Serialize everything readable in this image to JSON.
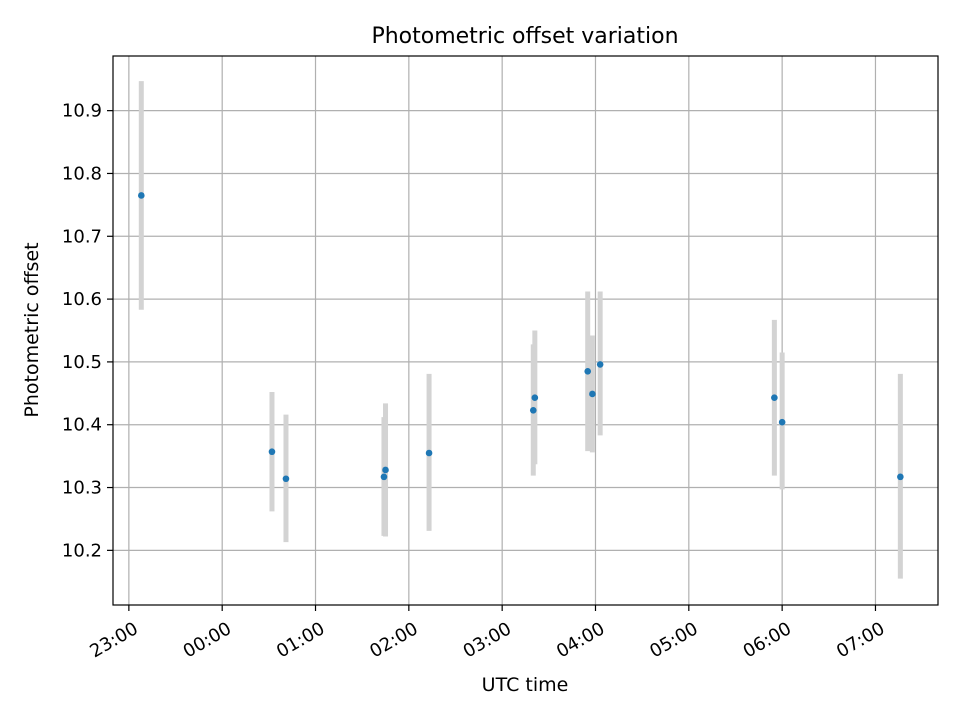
{
  "chart_data": {
    "type": "scatter",
    "title": "Photometric offset variation",
    "xlabel": "UTC time",
    "ylabel": "Photometric offset",
    "x_tick_labels": [
      "23:00",
      "00:00",
      "01:00",
      "02:00",
      "03:00",
      "04:00",
      "05:00",
      "06:00",
      "07:00"
    ],
    "y_tick_labels": [
      "10.2",
      "10.3",
      "10.4",
      "10.5",
      "10.6",
      "10.7",
      "10.8",
      "10.9"
    ],
    "x_ticks_hours": [
      -1,
      0,
      1,
      2,
      3,
      4,
      5,
      6,
      7
    ],
    "y_ticks": [
      10.2,
      10.3,
      10.4,
      10.5,
      10.6,
      10.7,
      10.8,
      10.9
    ],
    "xlim_hours": [
      -1.17,
      7.67
    ],
    "ylim": [
      10.113,
      10.987
    ],
    "grid": true,
    "colors": {
      "point": "#1f77b4",
      "errorbar": "#d3d3d3",
      "grid": "#b0b0b0"
    },
    "points": [
      {
        "time": "23:08",
        "y": 10.765,
        "low": 10.583,
        "high": 10.947
      },
      {
        "time": "00:32",
        "y": 10.357,
        "low": 10.262,
        "high": 10.452
      },
      {
        "time": "00:41",
        "y": 10.314,
        "low": 10.213,
        "high": 10.416
      },
      {
        "time": "01:44",
        "y": 10.317,
        "low": 10.223,
        "high": 10.412
      },
      {
        "time": "01:45",
        "y": 10.328,
        "low": 10.222,
        "high": 10.434
      },
      {
        "time": "02:13",
        "y": 10.355,
        "low": 10.231,
        "high": 10.481
      },
      {
        "time": "03:20",
        "y": 10.423,
        "low": 10.319,
        "high": 10.528
      },
      {
        "time": "03:21",
        "y": 10.443,
        "low": 10.337,
        "high": 10.55
      },
      {
        "time": "03:55",
        "y": 10.485,
        "low": 10.358,
        "high": 10.612
      },
      {
        "time": "03:58",
        "y": 10.449,
        "low": 10.356,
        "high": 10.542
      },
      {
        "time": "04:03",
        "y": 10.496,
        "low": 10.383,
        "high": 10.612
      },
      {
        "time": "05:55",
        "y": 10.443,
        "low": 10.319,
        "high": 10.567
      },
      {
        "time": "06:00",
        "y": 10.404,
        "low": 10.297,
        "high": 10.515
      },
      {
        "time": "07:16",
        "y": 10.317,
        "low": 10.155,
        "high": 10.481
      }
    ]
  }
}
